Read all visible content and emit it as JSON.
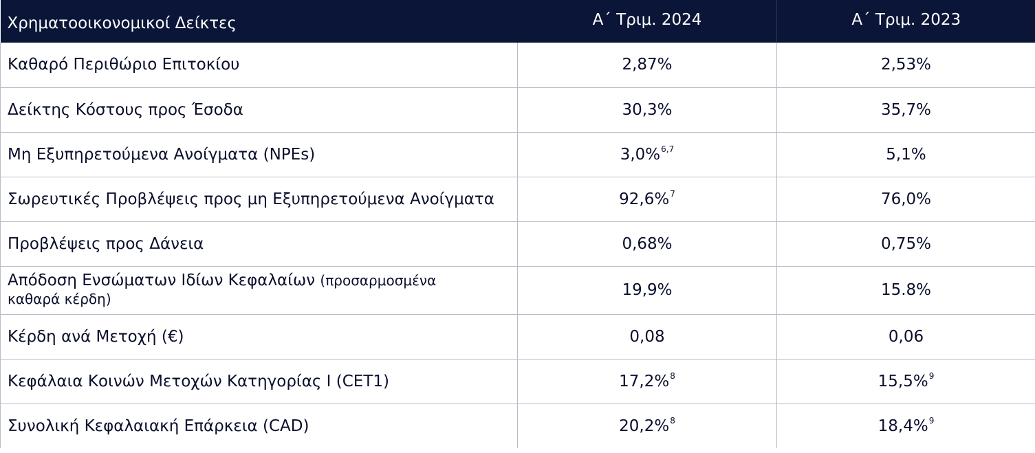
{
  "header": {
    "col1": "Χρηματοοικονομικοί Δείκτες",
    "col2": "Α΄ Τριμ. 2024",
    "col3": "Α΄ Τριμ. 2023"
  },
  "rows": [
    {
      "label": "Καθαρό Περιθώριο Επιτοκίου",
      "v2024": "2,87%",
      "v2024_fn": "",
      "v2023": "2,53%",
      "v2023_fn": ""
    },
    {
      "label": "Δείκτης Κόστους προς Έσοδα",
      "v2024": "30,3%",
      "v2024_fn": "",
      "v2023": "35,7%",
      "v2023_fn": ""
    },
    {
      "label": "Μη Εξυπηρετούμενα Ανοίγματα (NPEs)",
      "v2024": "3,0%",
      "v2024_fn": "6,7",
      "v2023": "5,1%",
      "v2023_fn": ""
    },
    {
      "label": "Σωρευτικές Προβλέψεις προς μη Εξυπηρετούμενα Ανοίγματα",
      "v2024": "92,6%",
      "v2024_fn": "7",
      "v2023": "76,0%",
      "v2023_fn": ""
    },
    {
      "label": "Προβλέψεις προς Δάνεια",
      "v2024": "0,68%",
      "v2024_fn": "",
      "v2023": "0,75%",
      "v2023_fn": ""
    },
    {
      "label": "Απόδοση Ενσώματων Ιδίων Κεφαλαίων",
      "label_note_1": "(προσαρμοσμένα",
      "label_note_2": "καθαρά κέρδη)",
      "v2024": "19,9%",
      "v2024_fn": "",
      "v2023": "15.8%",
      "v2023_fn": ""
    },
    {
      "label": "Κέρδη ανά Μετοχή (€)",
      "v2024": "0,08",
      "v2024_fn": "",
      "v2023": "0,06",
      "v2023_fn": ""
    },
    {
      "label": "Κεφάλαια Κοινών Μετοχών Κατηγορίας Ι (CET1)",
      "v2024": "17,2%",
      "v2024_fn": "8",
      "v2023": "15,5%",
      "v2023_fn": "9"
    },
    {
      "label": "Συνολική Κεφαλαιακή Επάρκεια (CAD)",
      "v2024": "20,2%",
      "v2024_fn": "8",
      "v2023": "18,4%",
      "v2023_fn": "9"
    }
  ]
}
